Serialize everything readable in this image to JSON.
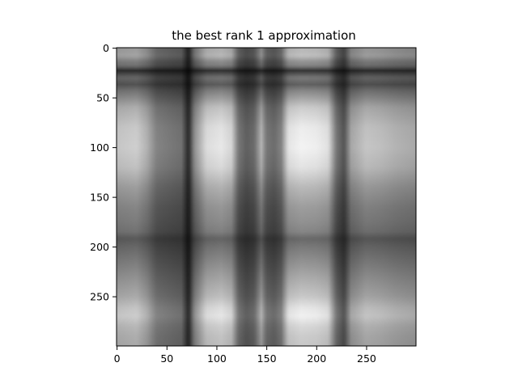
{
  "chart_data": {
    "type": "heatmap",
    "title": "the best rank 1 approximation",
    "xlabel": "",
    "ylabel": "",
    "colormap": "gray",
    "xlim": [
      -0.5,
      299.5
    ],
    "ylim": [
      299.5,
      -0.5
    ],
    "x_ticks": [
      0,
      50,
      100,
      150,
      200,
      250
    ],
    "y_ticks": [
      0,
      50,
      100,
      150,
      200,
      250
    ],
    "x_tick_labels": [
      "0",
      "50",
      "100",
      "150",
      "200",
      "250"
    ],
    "y_tick_labels": [
      "0",
      "50",
      "100",
      "150",
      "200",
      "250"
    ],
    "grid": false,
    "image_size": [
      300,
      300
    ],
    "column_profile": [
      [
        0,
        0.78
      ],
      [
        10,
        0.8
      ],
      [
        20,
        0.82
      ],
      [
        30,
        0.7
      ],
      [
        40,
        0.5
      ],
      [
        55,
        0.45
      ],
      [
        65,
        0.42
      ],
      [
        72,
        0.12
      ],
      [
        78,
        0.55
      ],
      [
        90,
        0.88
      ],
      [
        105,
        0.93
      ],
      [
        115,
        0.85
      ],
      [
        122,
        0.45
      ],
      [
        130,
        0.35
      ],
      [
        138,
        0.4
      ],
      [
        145,
        0.7
      ],
      [
        150,
        0.45
      ],
      [
        158,
        0.4
      ],
      [
        165,
        0.5
      ],
      [
        172,
        0.92
      ],
      [
        185,
        0.98
      ],
      [
        200,
        0.96
      ],
      [
        212,
        0.9
      ],
      [
        220,
        0.45
      ],
      [
        228,
        0.3
      ],
      [
        235,
        0.65
      ],
      [
        250,
        0.78
      ],
      [
        265,
        0.75
      ],
      [
        280,
        0.7
      ],
      [
        299,
        0.66
      ]
    ],
    "row_profile": [
      [
        0,
        0.7
      ],
      [
        8,
        0.75
      ],
      [
        14,
        0.55
      ],
      [
        18,
        0.5
      ],
      [
        23,
        0.18
      ],
      [
        30,
        0.45
      ],
      [
        37,
        0.35
      ],
      [
        43,
        0.5
      ],
      [
        50,
        0.62
      ],
      [
        60,
        0.8
      ],
      [
        80,
        0.94
      ],
      [
        100,
        0.97
      ],
      [
        120,
        0.9
      ],
      [
        140,
        0.72
      ],
      [
        160,
        0.6
      ],
      [
        175,
        0.55
      ],
      [
        185,
        0.5
      ],
      [
        192,
        0.38
      ],
      [
        200,
        0.45
      ],
      [
        215,
        0.55
      ],
      [
        230,
        0.65
      ],
      [
        250,
        0.78
      ],
      [
        262,
        0.92
      ],
      [
        270,
        0.96
      ],
      [
        280,
        0.85
      ],
      [
        290,
        0.8
      ],
      [
        299,
        0.78
      ]
    ]
  }
}
